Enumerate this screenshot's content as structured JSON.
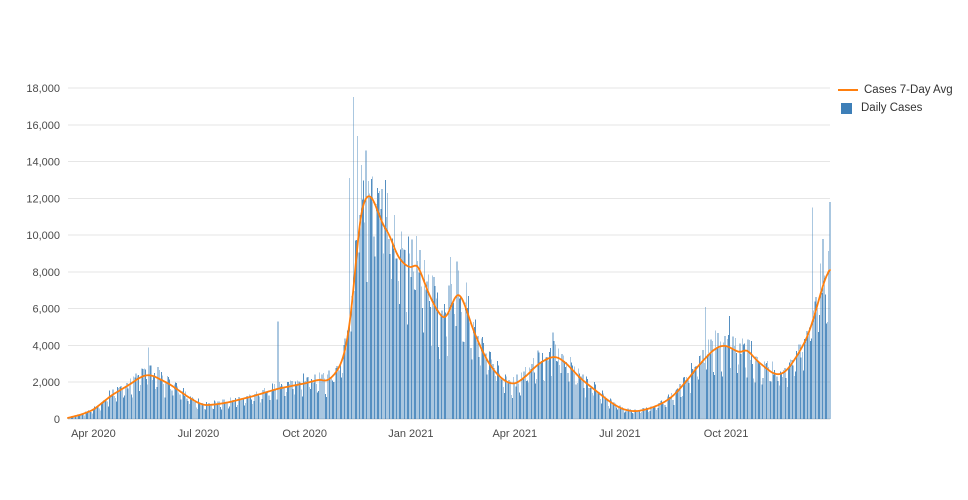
{
  "page": {
    "background": "#ffffff"
  },
  "chart_data": {
    "type": "bar",
    "title": "",
    "xlabel": "",
    "ylabel": "",
    "grid": true,
    "legend_position": "right-top",
    "ylim": [
      0,
      18000
    ],
    "y_tick_step": 2000,
    "y_tick_labels": [
      "0",
      "2,000",
      "4,000",
      "6,000",
      "8,000",
      "10,000",
      "12,000",
      "14,000",
      "16,000",
      "18,000"
    ],
    "n_days": 661,
    "x_ticks": [
      {
        "day": 22,
        "label": "Apr 2020"
      },
      {
        "day": 113,
        "label": "Jul 2020"
      },
      {
        "day": 205,
        "label": "Oct 2020"
      },
      {
        "day": 297,
        "label": "Jan 2021"
      },
      {
        "day": 387,
        "label": "Apr 2021"
      },
      {
        "day": 478,
        "label": "Jul 2021"
      },
      {
        "day": 570,
        "label": "Oct 2021"
      }
    ],
    "colors": {
      "grid": "#e6e6e6",
      "zero_line": "#d5d5d5",
      "axis_text": "#4a4a4a"
    },
    "series": [
      {
        "name": "Cases 7-Day Avg",
        "type": "line",
        "color": "#ff7f0e",
        "anchor_points": [
          [
            0,
            60
          ],
          [
            12,
            250
          ],
          [
            22,
            500
          ],
          [
            30,
            900
          ],
          [
            38,
            1300
          ],
          [
            46,
            1600
          ],
          [
            54,
            1900
          ],
          [
            62,
            2250
          ],
          [
            68,
            2400
          ],
          [
            74,
            2350
          ],
          [
            80,
            2150
          ],
          [
            88,
            1900
          ],
          [
            96,
            1550
          ],
          [
            104,
            1200
          ],
          [
            112,
            900
          ],
          [
            118,
            750
          ],
          [
            126,
            780
          ],
          [
            134,
            850
          ],
          [
            142,
            950
          ],
          [
            150,
            1080
          ],
          [
            158,
            1200
          ],
          [
            166,
            1350
          ],
          [
            174,
            1500
          ],
          [
            182,
            1650
          ],
          [
            190,
            1750
          ],
          [
            198,
            1850
          ],
          [
            206,
            1950
          ],
          [
            212,
            2050
          ],
          [
            218,
            2150
          ],
          [
            224,
            2050
          ],
          [
            230,
            2350
          ],
          [
            236,
            2900
          ],
          [
            241,
            3900
          ],
          [
            245,
            5600
          ],
          [
            249,
            8200
          ],
          [
            252,
            10500
          ],
          [
            255,
            11600
          ],
          [
            258,
            12100
          ],
          [
            262,
            12200
          ],
          [
            266,
            11700
          ],
          [
            270,
            11000
          ],
          [
            274,
            10400
          ],
          [
            278,
            10100
          ],
          [
            282,
            9400
          ],
          [
            286,
            8800
          ],
          [
            290,
            8500
          ],
          [
            294,
            8300
          ],
          [
            298,
            8200
          ],
          [
            302,
            8500
          ],
          [
            306,
            7900
          ],
          [
            310,
            7200
          ],
          [
            314,
            6600
          ],
          [
            318,
            6100
          ],
          [
            322,
            5700
          ],
          [
            326,
            5400
          ],
          [
            330,
            5800
          ],
          [
            334,
            6500
          ],
          [
            338,
            6900
          ],
          [
            342,
            6500
          ],
          [
            346,
            5800
          ],
          [
            350,
            5000
          ],
          [
            356,
            4100
          ],
          [
            362,
            3300
          ],
          [
            368,
            2700
          ],
          [
            374,
            2300
          ],
          [
            380,
            2000
          ],
          [
            387,
            1900
          ],
          [
            392,
            2100
          ],
          [
            398,
            2400
          ],
          [
            404,
            2800
          ],
          [
            410,
            3100
          ],
          [
            416,
            3300
          ],
          [
            421,
            3400
          ],
          [
            426,
            3300
          ],
          [
            432,
            3000
          ],
          [
            438,
            2600
          ],
          [
            444,
            2200
          ],
          [
            450,
            1900
          ],
          [
            456,
            1600
          ],
          [
            462,
            1300
          ],
          [
            468,
            1000
          ],
          [
            474,
            750
          ],
          [
            480,
            550
          ],
          [
            486,
            450
          ],
          [
            492,
            420
          ],
          [
            498,
            480
          ],
          [
            504,
            580
          ],
          [
            510,
            720
          ],
          [
            516,
            900
          ],
          [
            522,
            1150
          ],
          [
            528,
            1500
          ],
          [
            534,
            1950
          ],
          [
            540,
            2400
          ],
          [
            546,
            2900
          ],
          [
            552,
            3300
          ],
          [
            558,
            3700
          ],
          [
            564,
            3950
          ],
          [
            570,
            4000
          ],
          [
            576,
            3800
          ],
          [
            582,
            3600
          ],
          [
            588,
            3800
          ],
          [
            592,
            3500
          ],
          [
            598,
            3100
          ],
          [
            604,
            2800
          ],
          [
            610,
            2500
          ],
          [
            616,
            2400
          ],
          [
            622,
            2600
          ],
          [
            628,
            3100
          ],
          [
            634,
            3700
          ],
          [
            640,
            4400
          ],
          [
            645,
            5300
          ],
          [
            650,
            6400
          ],
          [
            654,
            7300
          ],
          [
            658,
            8000
          ],
          [
            660,
            8100
          ]
        ]
      },
      {
        "name": "Daily Cases",
        "type": "bar",
        "color": "#3d7fb8",
        "outlier_bars": [
          [
            70,
            3900
          ],
          [
            182,
            5300
          ],
          [
            244,
            13100
          ],
          [
            247,
            17500
          ],
          [
            251,
            15400
          ],
          [
            254,
            13800
          ],
          [
            258,
            14600
          ],
          [
            264,
            13200
          ],
          [
            272,
            12500
          ],
          [
            305,
            9200
          ],
          [
            331,
            8800
          ],
          [
            420,
            4700
          ],
          [
            552,
            6100
          ],
          [
            573,
            5600
          ],
          [
            645,
            11500
          ],
          [
            654,
            9800
          ],
          [
            660,
            11800
          ]
        ]
      }
    ]
  }
}
